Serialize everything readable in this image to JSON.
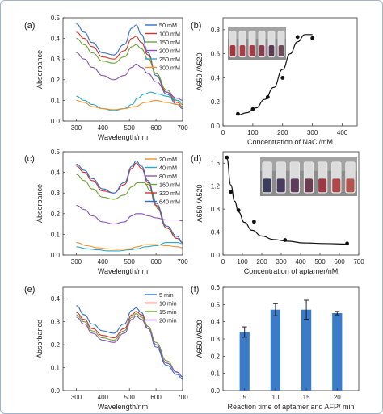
{
  "chart_data": [
    {
      "panel": "(a)",
      "type": "line",
      "xlabel": "Wavelength/nm",
      "ylabel": "Absorbance",
      "xlim": [
        250,
        700
      ],
      "ylim": [
        0.0,
        0.5
      ],
      "xticks": [
        "300",
        "400",
        "500",
        "600",
        "700"
      ],
      "yticks": [
        "0.0",
        "0.1",
        "0.2",
        "0.3",
        "0.4",
        "0.5"
      ],
      "legend_position": "top-right",
      "series": [
        {
          "name": "50   mM",
          "color": "#2f6fd0",
          "x": [
            300,
            330,
            360,
            400,
            440,
            480,
            510,
            525,
            545,
            570,
            600,
            640,
            680,
            700
          ],
          "y": [
            0.47,
            0.43,
            0.38,
            0.33,
            0.32,
            0.37,
            0.45,
            0.465,
            0.42,
            0.33,
            0.22,
            0.13,
            0.08,
            0.06
          ]
        },
        {
          "name": "100 mM",
          "color": "#d4322a",
          "x": [
            300,
            330,
            360,
            400,
            440,
            480,
            510,
            525,
            545,
            570,
            600,
            640,
            680,
            700
          ],
          "y": [
            0.43,
            0.4,
            0.36,
            0.31,
            0.3,
            0.34,
            0.4,
            0.41,
            0.38,
            0.32,
            0.23,
            0.14,
            0.09,
            0.07
          ]
        },
        {
          "name": "150 mM",
          "color": "#6ca437",
          "x": [
            300,
            330,
            360,
            400,
            440,
            480,
            510,
            525,
            545,
            570,
            600,
            640,
            680,
            700
          ],
          "y": [
            0.4,
            0.37,
            0.33,
            0.29,
            0.28,
            0.31,
            0.36,
            0.37,
            0.35,
            0.3,
            0.23,
            0.15,
            0.1,
            0.08
          ]
        },
        {
          "name": "200 mM",
          "color": "#8a54b4",
          "x": [
            300,
            330,
            360,
            400,
            440,
            480,
            510,
            525,
            545,
            570,
            600,
            640,
            680,
            700
          ],
          "y": [
            0.33,
            0.3,
            0.26,
            0.22,
            0.2,
            0.22,
            0.26,
            0.275,
            0.26,
            0.23,
            0.19,
            0.14,
            0.11,
            0.1
          ]
        },
        {
          "name": "250 mM",
          "color": "#2aa7c4",
          "x": [
            300,
            330,
            360,
            400,
            440,
            480,
            510,
            530,
            555,
            580,
            610,
            640,
            680,
            700
          ],
          "y": [
            0.12,
            0.1,
            0.08,
            0.06,
            0.05,
            0.06,
            0.08,
            0.11,
            0.13,
            0.14,
            0.13,
            0.12,
            0.1,
            0.09
          ]
        },
        {
          "name": "300 mM",
          "color": "#f0902c",
          "x": [
            300,
            330,
            360,
            400,
            440,
            480,
            520,
            560,
            600,
            640,
            680,
            700
          ],
          "y": [
            0.1,
            0.09,
            0.07,
            0.06,
            0.055,
            0.06,
            0.07,
            0.09,
            0.1,
            0.09,
            0.08,
            0.07
          ]
        }
      ]
    },
    {
      "panel": "(b)",
      "type": "scatter",
      "xlabel": "Concentration of NaCl/mM",
      "ylabel": "A650 /A520",
      "xlim": [
        0,
        450
      ],
      "ylim": [
        0.0,
        0.9
      ],
      "xticks": [
        "0",
        "100",
        "200",
        "300",
        "400"
      ],
      "yticks": [
        "0.0",
        "0.2",
        "0.4",
        "0.6",
        "0.8"
      ],
      "points": {
        "x": [
          50,
          100,
          150,
          200,
          250,
          300
        ],
        "y": [
          0.1,
          0.14,
          0.24,
          0.4,
          0.74,
          0.73
        ]
      },
      "fit": {
        "x": [
          50,
          80,
          110,
          140,
          170,
          200,
          225,
          250,
          275,
          300
        ],
        "y": [
          0.09,
          0.11,
          0.15,
          0.22,
          0.32,
          0.47,
          0.6,
          0.7,
          0.76,
          0.76
        ]
      }
    },
    {
      "panel": "(c)",
      "type": "line",
      "xlabel": "Wavelength/nm",
      "ylabel": "Absorbance",
      "xlim": [
        250,
        700
      ],
      "ylim": [
        0.0,
        0.5
      ],
      "xticks": [
        "300",
        "400",
        "500",
        "600",
        "700"
      ],
      "yticks": [
        "0.0",
        "0.1",
        "0.2",
        "0.3",
        "0.4",
        "0.5"
      ],
      "legend_position": "top-right",
      "series": [
        {
          "name": "20   mM",
          "color": "#f0902c",
          "x": [
            300,
            340,
            380,
            420,
            460,
            500,
            530,
            560,
            600,
            640,
            680,
            700
          ],
          "y": [
            0.06,
            0.045,
            0.035,
            0.03,
            0.028,
            0.03,
            0.04,
            0.05,
            0.05,
            0.045,
            0.04,
            0.035
          ]
        },
        {
          "name": "40   mM",
          "color": "#2aa7c4",
          "x": [
            300,
            340,
            380,
            420,
            460,
            500,
            530,
            560,
            600,
            640,
            680,
            700
          ],
          "y": [
            0.04,
            0.03,
            0.025,
            0.02,
            0.02,
            0.025,
            0.03,
            0.04,
            0.045,
            0.06,
            0.06,
            0.055
          ]
        },
        {
          "name": "80   mM",
          "color": "#8a54b4",
          "x": [
            300,
            330,
            360,
            400,
            440,
            480,
            510,
            525,
            545,
            570,
            600,
            640,
            680,
            700
          ],
          "y": [
            0.24,
            0.22,
            0.19,
            0.16,
            0.15,
            0.16,
            0.19,
            0.2,
            0.2,
            0.19,
            0.18,
            0.17,
            0.17,
            0.165
          ]
        },
        {
          "name": "160 mM",
          "color": "#6ca437",
          "x": [
            300,
            330,
            360,
            400,
            440,
            480,
            510,
            530,
            555,
            580,
            610,
            640,
            680,
            700
          ],
          "y": [
            0.39,
            0.36,
            0.32,
            0.28,
            0.27,
            0.29,
            0.33,
            0.35,
            0.35,
            0.31,
            0.22,
            0.13,
            0.08,
            0.06
          ]
        },
        {
          "name": "320 mM",
          "color": "#d4322a",
          "x": [
            300,
            330,
            360,
            400,
            440,
            480,
            510,
            525,
            545,
            570,
            600,
            640,
            680,
            700
          ],
          "y": [
            0.43,
            0.4,
            0.36,
            0.31,
            0.3,
            0.34,
            0.42,
            0.445,
            0.42,
            0.35,
            0.24,
            0.13,
            0.08,
            0.06
          ]
        },
        {
          "name": "640 mM",
          "color": "#2f6fd0",
          "x": [
            300,
            330,
            360,
            400,
            440,
            480,
            510,
            525,
            545,
            570,
            600,
            640,
            680,
            700
          ],
          "y": [
            0.44,
            0.41,
            0.37,
            0.32,
            0.3,
            0.35,
            0.43,
            0.455,
            0.43,
            0.36,
            0.25,
            0.14,
            0.09,
            0.06
          ]
        }
      ]
    },
    {
      "panel": "(d)",
      "type": "scatter",
      "xlabel": "Concentration of aptamer/nM",
      "ylabel": "A650 /A520",
      "xlim": [
        0,
        700
      ],
      "ylim": [
        0.0,
        1.8
      ],
      "xticks": [
        "0",
        "100",
        "200",
        "300",
        "400",
        "500",
        "600",
        "700"
      ],
      "yticks": [
        "0.0",
        "0.4",
        "0.8",
        "1.2",
        "1.6"
      ],
      "points": {
        "x": [
          20,
          40,
          80,
          160,
          320,
          640
        ],
        "y": [
          1.7,
          1.1,
          0.78,
          0.58,
          0.26,
          0.2
        ]
      },
      "fit": {
        "x": [
          20,
          40,
          60,
          80,
          110,
          150,
          200,
          260,
          330,
          420,
          520,
          640
        ],
        "y": [
          1.68,
          1.22,
          0.94,
          0.75,
          0.57,
          0.43,
          0.33,
          0.27,
          0.24,
          0.21,
          0.2,
          0.19
        ]
      }
    },
    {
      "panel": "(e)",
      "type": "line",
      "xlabel": "Wavelength/nm",
      "ylabel": "Absorbance",
      "xlim": [
        250,
        700
      ],
      "ylim": [
        0.0,
        0.45
      ],
      "xticks": [
        "300",
        "400",
        "500",
        "600",
        "700"
      ],
      "yticks": [
        "0.0",
        "0.1",
        "0.2",
        "0.3",
        "0.4"
      ],
      "legend_position": "top-right",
      "series": [
        {
          "name": "5 min",
          "color": "#2f6fd0",
          "x": [
            300,
            330,
            360,
            400,
            440,
            480,
            510,
            525,
            545,
            570,
            600,
            640,
            680,
            700
          ],
          "y": [
            0.37,
            0.33,
            0.29,
            0.26,
            0.25,
            0.29,
            0.35,
            0.36,
            0.34,
            0.27,
            0.19,
            0.11,
            0.07,
            0.05
          ]
        },
        {
          "name": "10 min",
          "color": "#d4322a",
          "x": [
            300,
            330,
            360,
            400,
            440,
            480,
            510,
            525,
            545,
            570,
            600,
            640,
            680,
            700
          ],
          "y": [
            0.34,
            0.31,
            0.27,
            0.24,
            0.23,
            0.27,
            0.33,
            0.345,
            0.33,
            0.28,
            0.2,
            0.12,
            0.08,
            0.06
          ]
        },
        {
          "name": "15 min",
          "color": "#6ca437",
          "x": [
            300,
            330,
            360,
            400,
            440,
            480,
            510,
            525,
            545,
            570,
            600,
            640,
            680,
            700
          ],
          "y": [
            0.33,
            0.3,
            0.26,
            0.23,
            0.22,
            0.26,
            0.32,
            0.335,
            0.32,
            0.28,
            0.21,
            0.13,
            0.08,
            0.06
          ]
        },
        {
          "name": "20 min",
          "color": "#8a54b4",
          "x": [
            300,
            330,
            360,
            400,
            440,
            480,
            510,
            525,
            545,
            570,
            600,
            640,
            680,
            700
          ],
          "y": [
            0.32,
            0.29,
            0.25,
            0.22,
            0.21,
            0.25,
            0.31,
            0.325,
            0.31,
            0.27,
            0.2,
            0.12,
            0.08,
            0.06
          ]
        }
      ]
    },
    {
      "panel": "(f)",
      "type": "bar",
      "xlabel": "Reaction time of aptamer and AFP/ min",
      "ylabel": "A650 /A520",
      "ylim": [
        0.0,
        0.6
      ],
      "yticks": [
        "0.0",
        "0.1",
        "0.2",
        "0.3",
        "0.4",
        "0.5",
        "0.6"
      ],
      "categories": [
        "5",
        "10",
        "15",
        "20"
      ],
      "values": [
        0.34,
        0.47,
        0.47,
        0.45
      ],
      "errors": [
        0.03,
        0.035,
        0.055,
        0.01
      ],
      "color": "#3a7cc9"
    }
  ]
}
